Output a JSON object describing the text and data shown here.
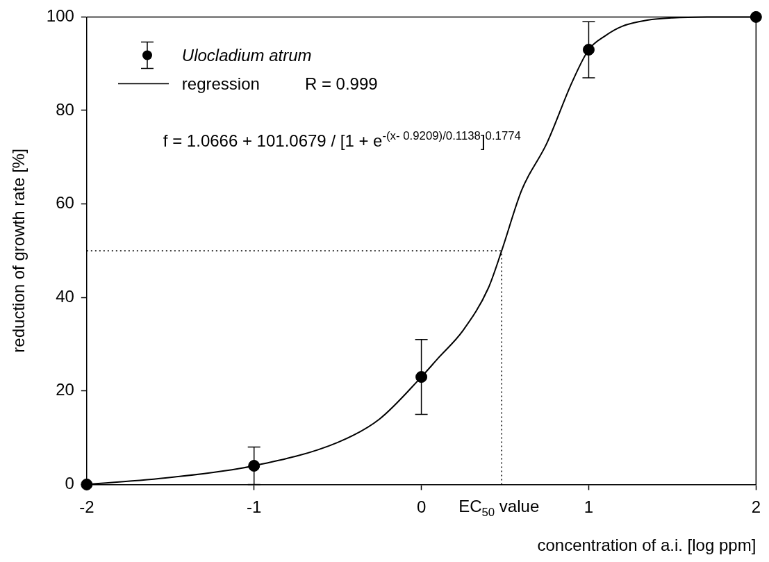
{
  "chart_data": {
    "type": "scatter",
    "xlabel": "concentration of a.i. [log ppm]",
    "ylabel": "reduction of growth rate [%]",
    "xlim": [
      -2,
      2
    ],
    "ylim": [
      0,
      100
    ],
    "xticks": [
      -2,
      -1,
      0,
      1,
      2
    ],
    "yticks": [
      0,
      20,
      40,
      60,
      80,
      100
    ],
    "grid": false,
    "legend": "top left",
    "series": [
      {
        "name": "Ulocladium atrum",
        "type": "scatter",
        "marker": "circle",
        "color": "#000000",
        "x": [
          -2,
          -1,
          0,
          1,
          2
        ],
        "values": [
          0,
          4,
          23,
          93,
          100
        ],
        "errors": [
          null,
          4,
          8,
          6,
          null
        ]
      },
      {
        "name": "regression",
        "type": "line",
        "marker": "none",
        "color": "#000000",
        "line_style": "solid",
        "x": [
          -2,
          -1.5,
          -1,
          -0.5,
          -0.25,
          0,
          0.1,
          0.25,
          0.4,
          0.48,
          0.6,
          0.75,
          0.9,
          1,
          1.1,
          1.2,
          1.35,
          1.5,
          1.75,
          2
        ],
        "values": [
          0,
          1.5,
          4,
          9,
          14,
          23,
          27,
          33,
          42,
          50,
          63,
          73,
          86,
          93,
          96,
          98,
          99.3,
          99.8,
          100,
          100
        ]
      }
    ],
    "ref_lines": [
      {
        "axis": "y",
        "value": 50,
        "line_style": "dotted",
        "color": "#000000"
      },
      {
        "axis": "x",
        "value": 0.48,
        "label": "EC$_{50}$ value",
        "line_style": "dotted",
        "color": "#000000"
      }
    ],
    "annotations": [
      "R = 0.999",
      "f = 1.0666 + 101.0679 / [1 + e$^{-(x- 0.9209)/0.1138}$]$^{0.1774}$"
    ]
  }
}
